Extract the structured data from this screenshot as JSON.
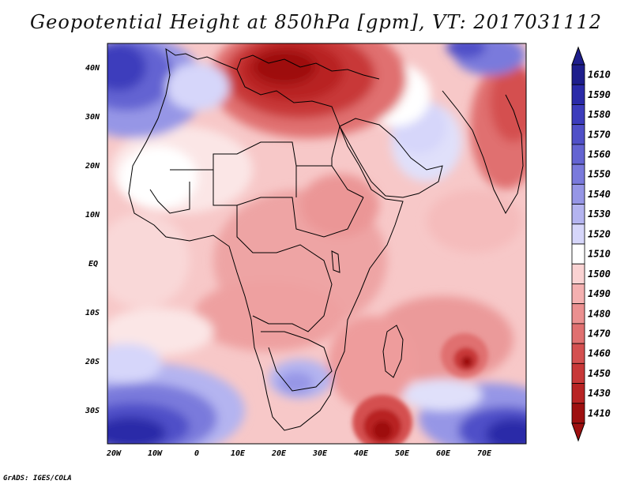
{
  "title": "Geopotential Height at 850hPa [gpm], VT: 2017031112",
  "credit": "GrADS: IGES/COLA",
  "axes": {
    "lon_labels": [
      "20W",
      "10W",
      "0",
      "10E",
      "20E",
      "30E",
      "40E",
      "50E",
      "60E",
      "70E"
    ],
    "lat_labels": [
      "40N",
      "30N",
      "20N",
      "10N",
      "EQ",
      "10S",
      "20S",
      "30S"
    ]
  },
  "colorbar": {
    "levels": [
      "1610",
      "1590",
      "1580",
      "1570",
      "1560",
      "1550",
      "1540",
      "1530",
      "1520",
      "1510",
      "1500",
      "1490",
      "1480",
      "1470",
      "1460",
      "1450",
      "1430",
      "1410"
    ],
    "colors": [
      "#1e1e8c",
      "#2a2aa8",
      "#3c3cbc",
      "#5050c8",
      "#6464d2",
      "#7a7adc",
      "#9696e6",
      "#b4b4f0",
      "#d6d6fa",
      "#ffffff",
      "#fad2d2",
      "#f4b0b0",
      "#eb9090",
      "#e07070",
      "#d45050",
      "#c83838",
      "#b82424",
      "#9e1010"
    ]
  },
  "field": {
    "variable": "Geopotential Height at 850hPa",
    "units": "gpm",
    "valid_time": "2017031112"
  }
}
